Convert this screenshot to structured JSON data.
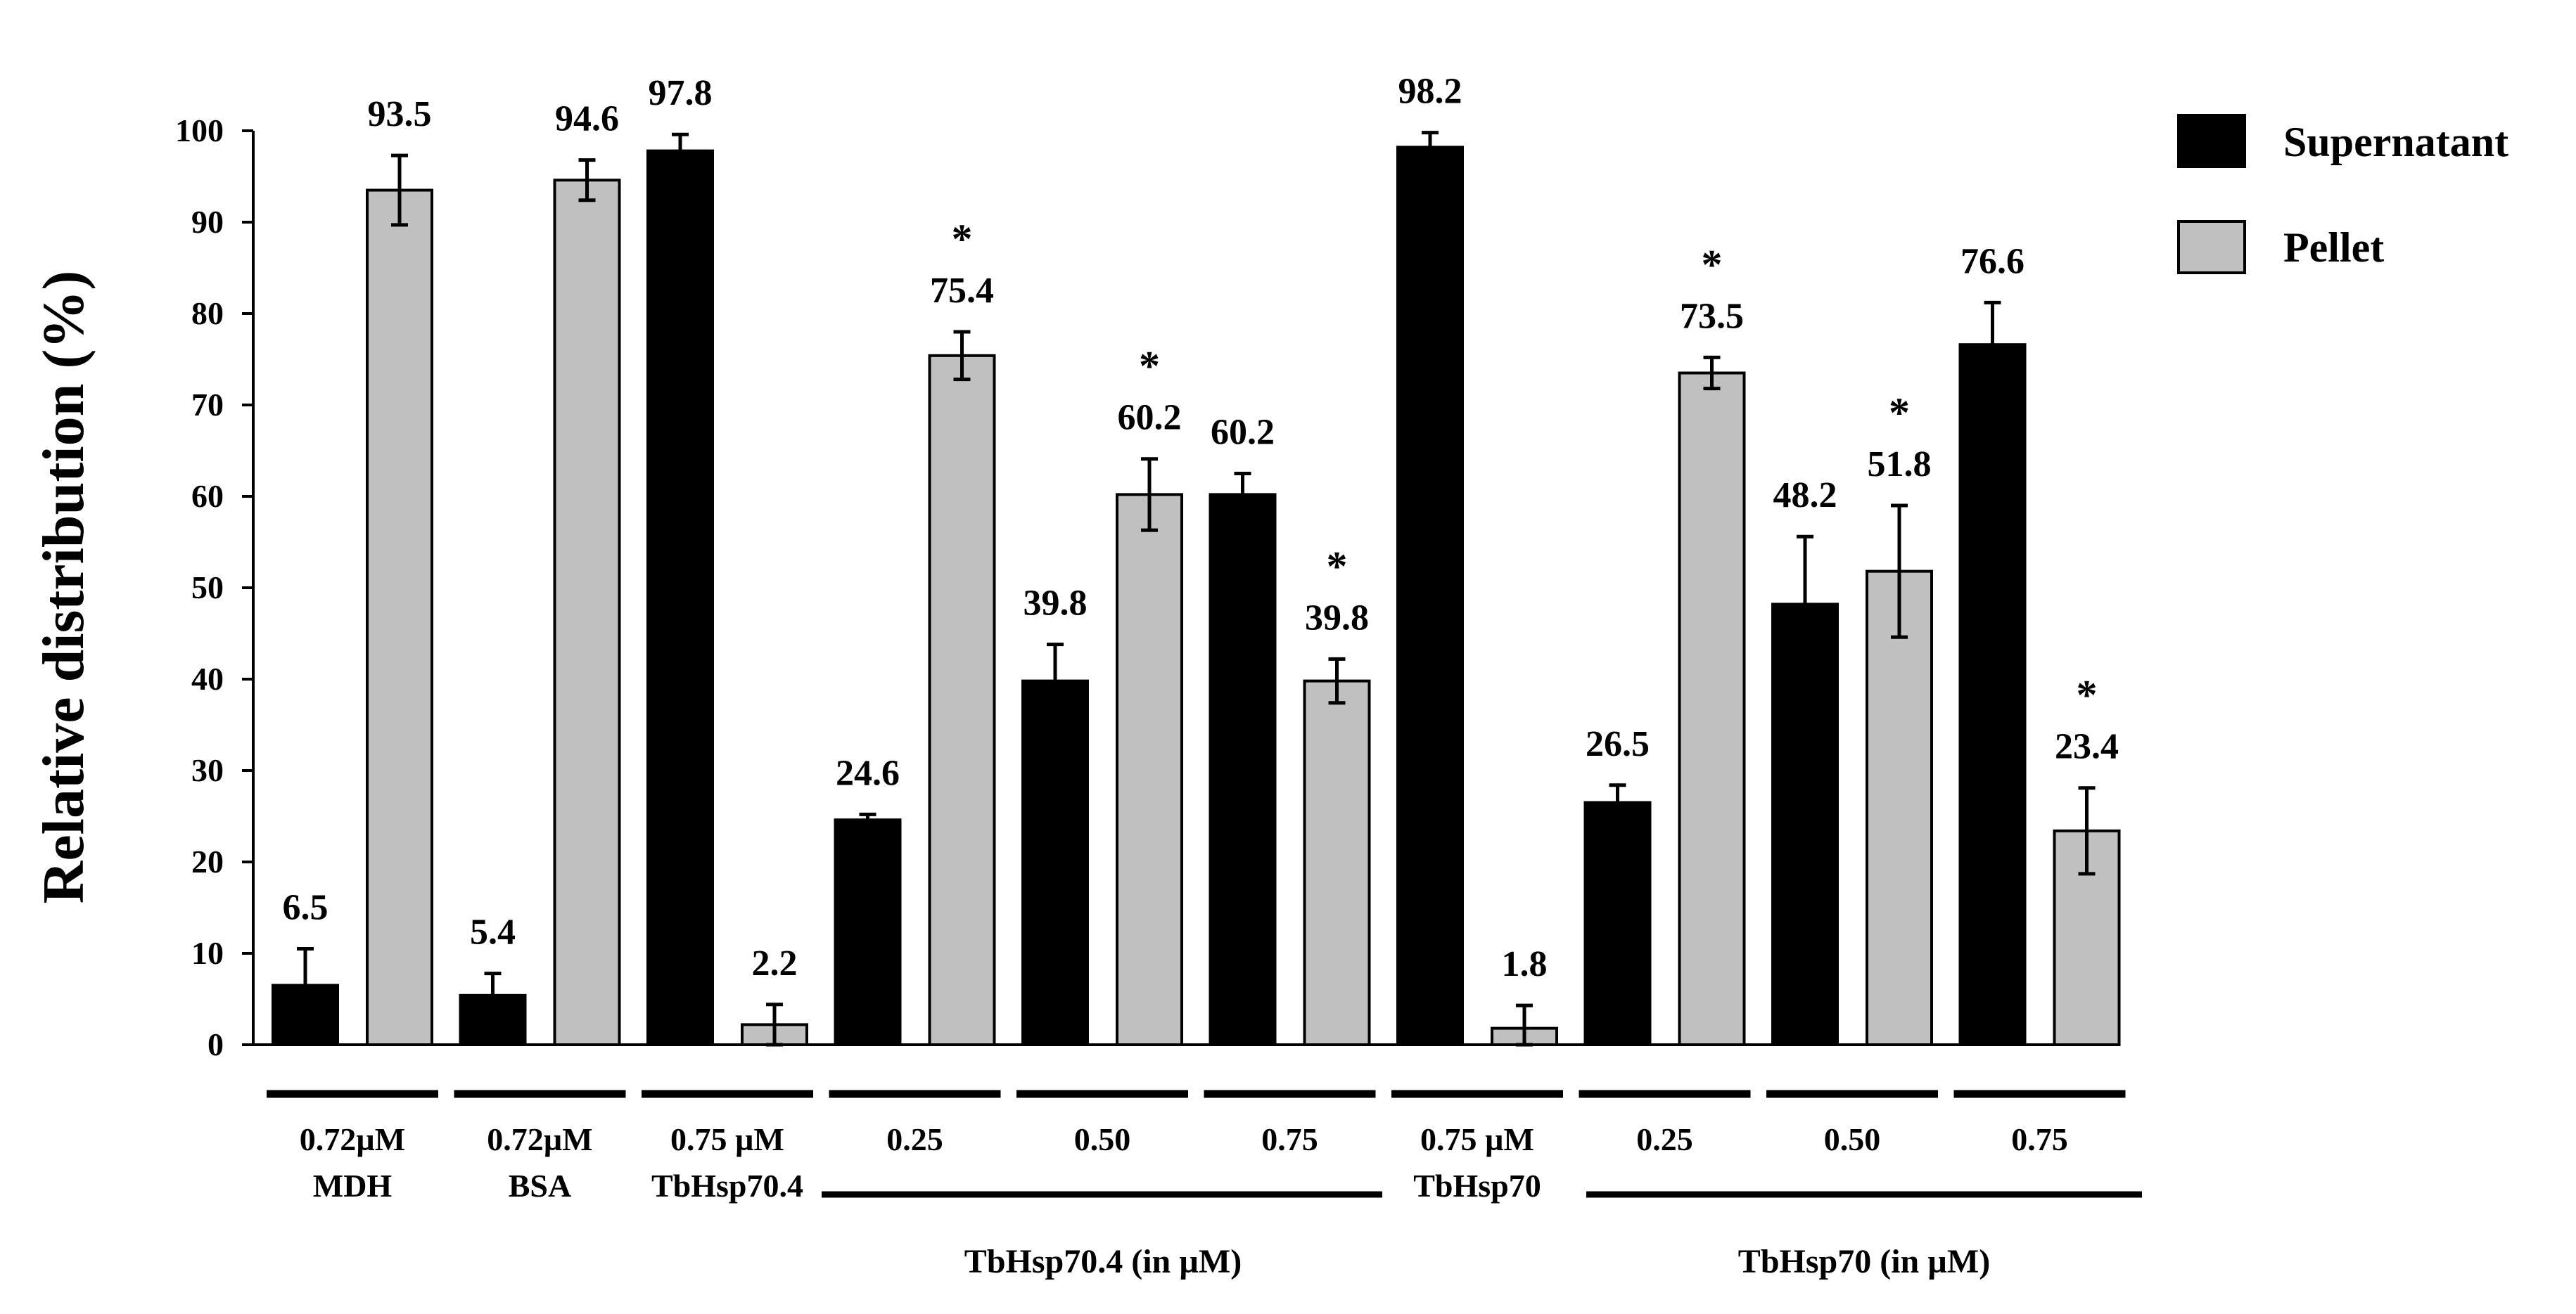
{
  "chart_data": {
    "type": "bar",
    "title": "",
    "xlabel": "",
    "ylabel": "Relative distribution (%)",
    "ylim": [
      0,
      100
    ],
    "yticks": [
      "0",
      "10",
      "20",
      "30",
      "40",
      "50",
      "60",
      "70",
      "80",
      "90",
      "100"
    ],
    "grid": false,
    "legend_position": "top-right",
    "colors": {
      "Supernatant": "#000000",
      "Pellet": "#c0c0c0",
      "axis": "#000000"
    },
    "series": [
      {
        "name": "Supernatant",
        "values": [
          6.5,
          5.4,
          97.8,
          24.6,
          39.8,
          60.2,
          98.2,
          26.5,
          48.2,
          76.6
        ],
        "errors": [
          4.0,
          2.4,
          1.8,
          0.6,
          4.0,
          2.3,
          1.6,
          1.9,
          7.4,
          4.6
        ]
      },
      {
        "name": "Pellet",
        "values": [
          93.5,
          94.6,
          2.2,
          75.4,
          60.2,
          39.8,
          1.8,
          73.5,
          51.8,
          23.4
        ],
        "errors": [
          3.8,
          2.2,
          2.2,
          2.6,
          3.9,
          2.4,
          2.5,
          1.7,
          7.2,
          4.7
        ]
      }
    ],
    "data_labels": {
      "Supernatant": [
        "6.5",
        "5.4",
        "97.8",
        "24.6",
        "39.8",
        "60.2",
        "98.2",
        "26.5",
        "48.2",
        "76.6"
      ],
      "Pellet": [
        "93.5",
        "94.6",
        "2.2",
        "75.4",
        "60.2",
        "39.8",
        "1.8",
        "73.5",
        "51.8",
        "23.4"
      ]
    },
    "significance_marker": "*",
    "significant_pellet_groups": [
      3,
      4,
      5,
      7,
      8,
      9
    ],
    "group_labels": [
      [
        "0.72µM",
        "MDH"
      ],
      [
        "0.72µM",
        "BSA"
      ],
      [
        "0.75 µM",
        "TbHsp70.4"
      ],
      [
        "0.25"
      ],
      [
        "0.50"
      ],
      [
        "0.75"
      ],
      [
        "0.75 µM",
        "TbHsp70"
      ],
      [
        "0.25"
      ],
      [
        "0.50"
      ],
      [
        "0.75"
      ]
    ],
    "bracket_labels": [
      "TbHsp70.4 (in µM)",
      "TbHsp70 (in µM)"
    ]
  }
}
